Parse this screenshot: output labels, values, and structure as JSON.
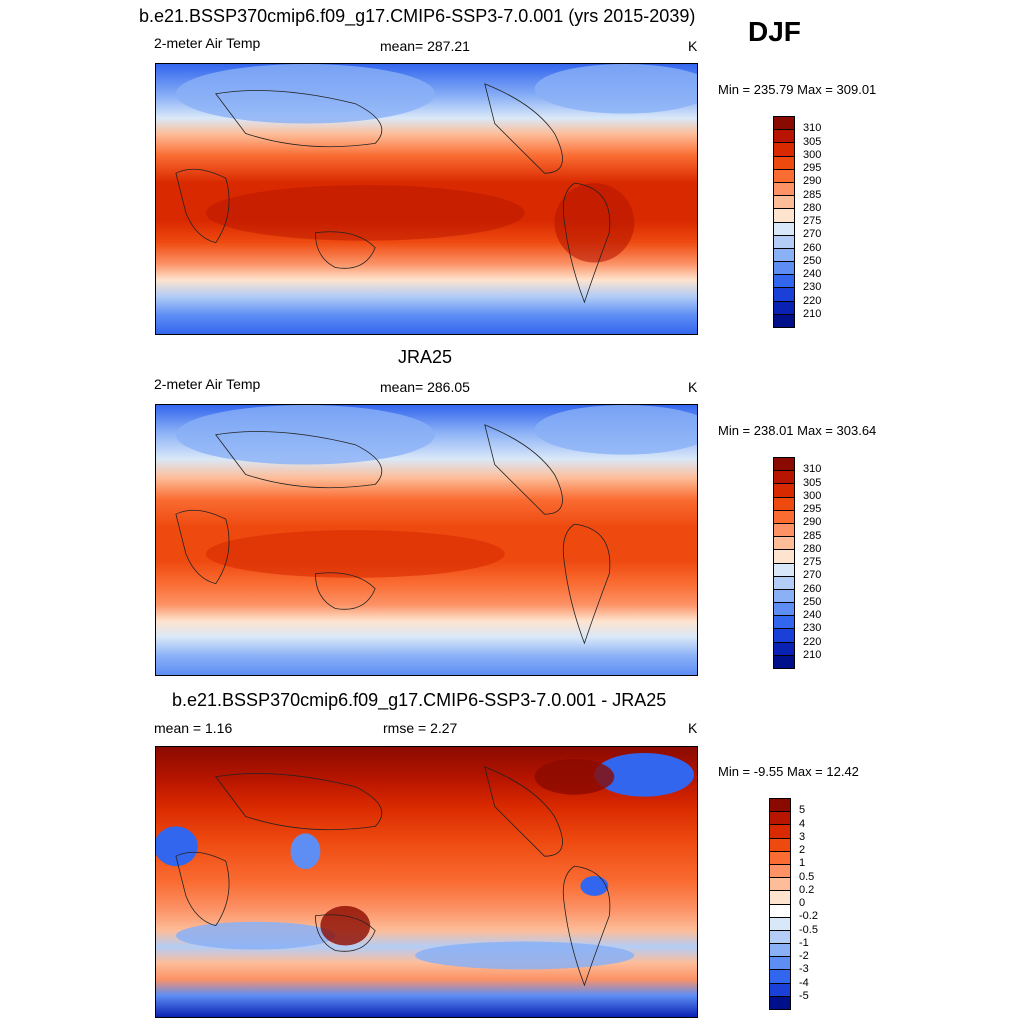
{
  "season": "DJF",
  "panels": [
    {
      "title": "b.e21.BSSP370cmip6.f09_g17.CMIP6-SSP3-7.0.001 (yrs 2015-2039)",
      "left_label": "2-meter Air Temp",
      "center_label": "mean= 287.21",
      "unit": "K",
      "minmax": "Min = 235.79 Max = 309.01",
      "levels": [
        "310",
        "305",
        "300",
        "295",
        "290",
        "285",
        "280",
        "275",
        "270",
        "260",
        "250",
        "240",
        "230",
        "220",
        "210"
      ],
      "colors": [
        "#8b0a00",
        "#b71500",
        "#d92900",
        "#ee4a10",
        "#fa6c32",
        "#fc9266",
        "#fdbd99",
        "#fee3ce",
        "#d9e8f8",
        "#b3cdf6",
        "#8ab0f6",
        "#5e8ef4",
        "#3366ee",
        "#1a40d8",
        "#0a22b4",
        "#00108a"
      ]
    },
    {
      "title": "JRA25",
      "left_label": "2-meter Air Temp",
      "center_label": "mean= 286.05",
      "unit": "K",
      "minmax": "Min = 238.01 Max = 303.64",
      "levels": [
        "310",
        "305",
        "300",
        "295",
        "290",
        "285",
        "280",
        "275",
        "270",
        "260",
        "250",
        "240",
        "230",
        "220",
        "210"
      ],
      "colors": [
        "#8b0a00",
        "#b71500",
        "#d92900",
        "#ee4a10",
        "#fa6c32",
        "#fc9266",
        "#fdbd99",
        "#fee3ce",
        "#d9e8f8",
        "#b3cdf6",
        "#8ab0f6",
        "#5e8ef4",
        "#3366ee",
        "#1a40d8",
        "#0a22b4",
        "#00108a"
      ]
    },
    {
      "title": "b.e21.BSSP370cmip6.f09_g17.CMIP6-SSP3-7.0.001 - JRA25",
      "left_label": "mean =   1.16",
      "center_label": "rmse =   2.27",
      "unit": "K",
      "minmax": "Min =  -9.55 Max =  12.42",
      "levels": [
        "5",
        "4",
        "3",
        "2",
        "1",
        "0.5",
        "0.2",
        "0",
        "-0.2",
        "-0.5",
        "-1",
        "-2",
        "-3",
        "-4",
        "-5"
      ],
      "colors": [
        "#8b0a00",
        "#b71500",
        "#d92900",
        "#ee4a10",
        "#fa6c32",
        "#fc9266",
        "#fdbd99",
        "#fee3ce",
        "#ffffff",
        "#d9e8f8",
        "#b3cdf6",
        "#8ab0f6",
        "#5e8ef4",
        "#3366ee",
        "#1a40d8",
        "#00108a"
      ]
    }
  ]
}
